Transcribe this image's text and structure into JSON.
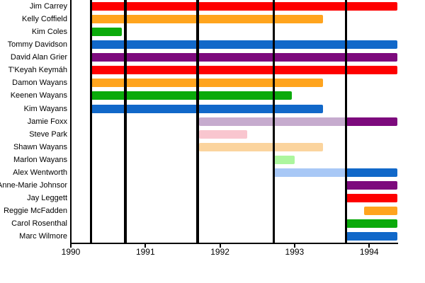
{
  "chart_data": {
    "type": "gantt",
    "title": "",
    "x_axis": {
      "label": "",
      "ticks": [
        1990,
        1991,
        1992,
        1993,
        1994
      ],
      "tick_labels": [
        "1990",
        "1991",
        "1992",
        "1993",
        "1994"
      ],
      "range": [
        1990.0,
        1994.39
      ],
      "grid": true
    },
    "gridlines": [
      1990.27,
      1990.73,
      1991.7,
      1992.72,
      1993.69
    ],
    "palette": {
      "red": "#fe0000",
      "orange": "#ffa41e",
      "green": "#0baa0b",
      "blue": "#1168c9",
      "purple": "#7d0a7d",
      "light_purple": "#c6abce",
      "light_pink": "#f9c6cf",
      "light_orange": "#fbd49e",
      "light_green": "#acf69e",
      "light_blue": "#a8c8f6",
      "axis": "#000000",
      "text": "#000000",
      "background": "#ffffff"
    },
    "rows": [
      {
        "name": "Jim Carrey",
        "segments": [
          {
            "start": 1990.28,
            "end": 1994.38,
            "color": "red"
          }
        ]
      },
      {
        "name": "Kelly Coffield",
        "segments": [
          {
            "start": 1990.28,
            "end": 1993.38,
            "color": "orange"
          }
        ]
      },
      {
        "name": "Kim Coles",
        "segments": [
          {
            "start": 1990.28,
            "end": 1990.68,
            "color": "green"
          }
        ]
      },
      {
        "name": "Tommy Davidson",
        "segments": [
          {
            "start": 1990.28,
            "end": 1994.38,
            "color": "blue"
          }
        ]
      },
      {
        "name": "David Alan Grier",
        "segments": [
          {
            "start": 1990.28,
            "end": 1994.38,
            "color": "purple"
          }
        ]
      },
      {
        "name": "T'Keyah Keymáh",
        "segments": [
          {
            "start": 1990.28,
            "end": 1994.38,
            "color": "red"
          }
        ]
      },
      {
        "name": "Damon Wayans",
        "segments": [
          {
            "start": 1990.28,
            "end": 1993.38,
            "color": "orange"
          }
        ]
      },
      {
        "name": "Keenen Wayans",
        "segments": [
          {
            "start": 1990.28,
            "end": 1992.96,
            "color": "green"
          }
        ]
      },
      {
        "name": "Kim Wayans",
        "segments": [
          {
            "start": 1990.28,
            "end": 1993.38,
            "color": "blue"
          }
        ]
      },
      {
        "name": "Jamie Foxx",
        "segments": [
          {
            "start": 1991.72,
            "end": 1993.69,
            "color": "light_purple"
          },
          {
            "start": 1993.69,
            "end": 1994.38,
            "color": "purple"
          }
        ]
      },
      {
        "name": "Steve Park",
        "segments": [
          {
            "start": 1991.72,
            "end": 1992.36,
            "color": "light_pink"
          }
        ]
      },
      {
        "name": "Shawn Wayans",
        "segments": [
          {
            "start": 1991.72,
            "end": 1993.38,
            "color": "light_orange"
          }
        ]
      },
      {
        "name": "Marlon Wayans",
        "segments": [
          {
            "start": 1992.72,
            "end": 1993.0,
            "color": "light_green"
          }
        ]
      },
      {
        "name": "Alex Wentworth",
        "segments": [
          {
            "start": 1992.72,
            "end": 1993.69,
            "color": "light_blue"
          },
          {
            "start": 1993.69,
            "end": 1994.38,
            "color": "blue"
          }
        ]
      },
      {
        "name": "Anne-Marie Johnson",
        "segments": [
          {
            "start": 1993.69,
            "end": 1994.38,
            "color": "purple"
          }
        ]
      },
      {
        "name": "Jay Leggett",
        "segments": [
          {
            "start": 1993.69,
            "end": 1994.38,
            "color": "red"
          }
        ]
      },
      {
        "name": "Reggie McFadden",
        "segments": [
          {
            "start": 1993.93,
            "end": 1994.38,
            "color": "orange"
          }
        ]
      },
      {
        "name": "Carol Rosenthal",
        "segments": [
          {
            "start": 1993.69,
            "end": 1994.38,
            "color": "green"
          }
        ]
      },
      {
        "name": "Marc Wilmore",
        "segments": [
          {
            "start": 1993.69,
            "end": 1994.38,
            "color": "blue"
          }
        ]
      }
    ]
  }
}
